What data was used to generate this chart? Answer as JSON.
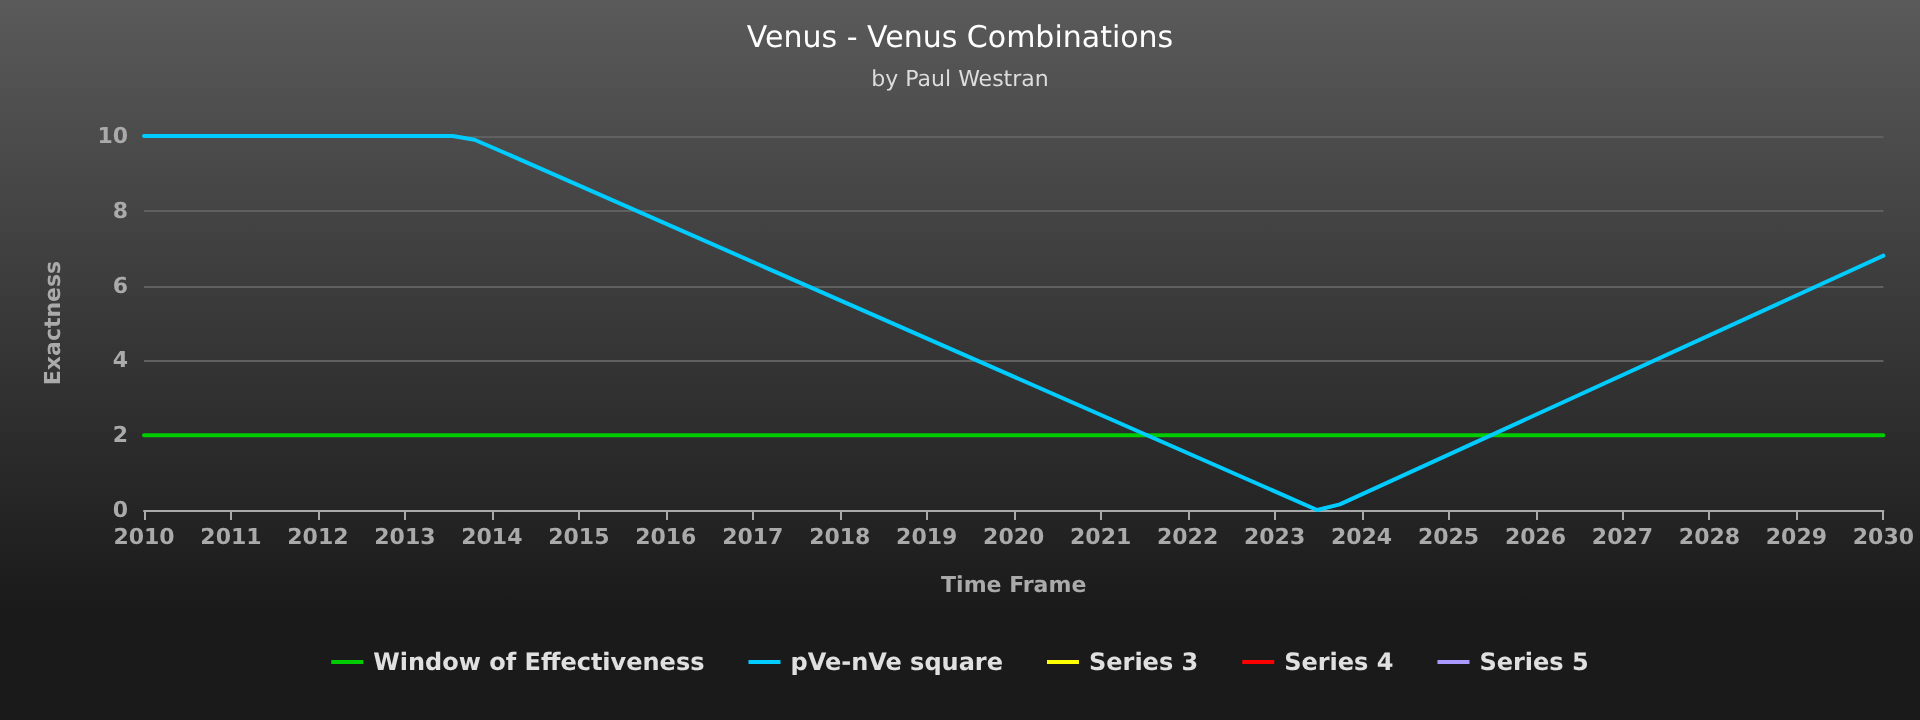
{
  "chart_data": {
    "type": "line",
    "title": "Venus - Venus Combinations",
    "subtitle": "by Paul Westran",
    "xlabel": "Time Frame",
    "ylabel": "Exactness",
    "xlim": [
      2010,
      2030
    ],
    "xticks": [
      2010,
      2011,
      2012,
      2013,
      2014,
      2015,
      2016,
      2017,
      2018,
      2019,
      2020,
      2021,
      2022,
      2023,
      2024,
      2025,
      2026,
      2027,
      2028,
      2029,
      2030
    ],
    "ylim": [
      0,
      10
    ],
    "yticks": [
      0,
      2,
      4,
      6,
      8,
      10
    ],
    "grid": "y",
    "legend": "bottom",
    "marker": "none",
    "line_style": "solid",
    "series": [
      {
        "name": "Window of Effectiveness",
        "color": "#00cc00",
        "x": [
          2010,
          2030
        ],
        "values": [
          2,
          2
        ]
      },
      {
        "name": "pVe-nVe square",
        "color": "#00ccff",
        "x": [
          2010,
          2013.55,
          2013.8,
          2014,
          2023.49,
          2023.75,
          2030
        ],
        "values": [
          10,
          10,
          9.9,
          9.7,
          0,
          0.15,
          6.8
        ]
      },
      {
        "name": "Series 3",
        "color": "#ffff00"
      },
      {
        "name": "Series 4",
        "color": "#ff0000"
      },
      {
        "name": "Series 5",
        "color": "#aa99ff"
      }
    ]
  }
}
